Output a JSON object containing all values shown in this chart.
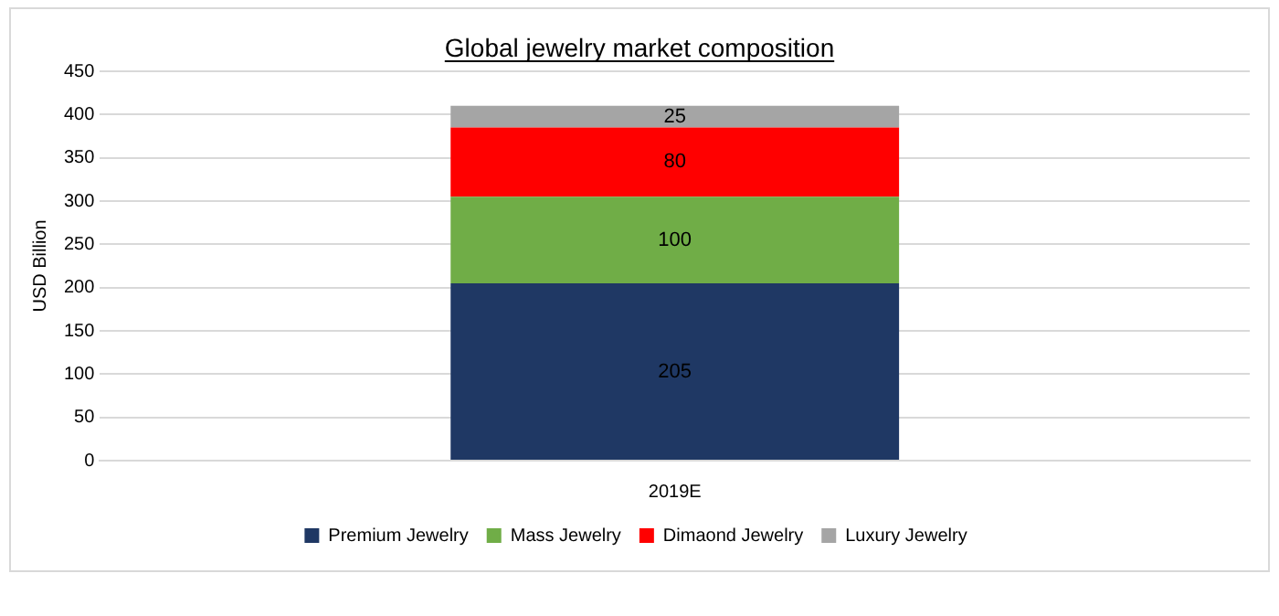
{
  "chart_data": {
    "type": "bar",
    "title": "Global jewelry market composition",
    "ylabel": "USD Billion",
    "categories": [
      "2019E"
    ],
    "stacked": true,
    "series": [
      {
        "name": "Premium Jewelry",
        "color": "#1f3864",
        "values": [
          205
        ]
      },
      {
        "name": "Mass Jewelry",
        "color": "#70ad47",
        "values": [
          100
        ]
      },
      {
        "name": "Dimaond Jewelry",
        "color": "#ff0000",
        "values": [
          80
        ]
      },
      {
        "name": "Luxury Jewelry",
        "color": "#a5a5a5",
        "values": [
          25
        ]
      }
    ],
    "ylim": [
      0,
      450
    ],
    "yticks": [
      0,
      50,
      100,
      150,
      200,
      250,
      300,
      350,
      400,
      450
    ],
    "grid": "y",
    "legend": "bottom",
    "data_labels": true
  }
}
